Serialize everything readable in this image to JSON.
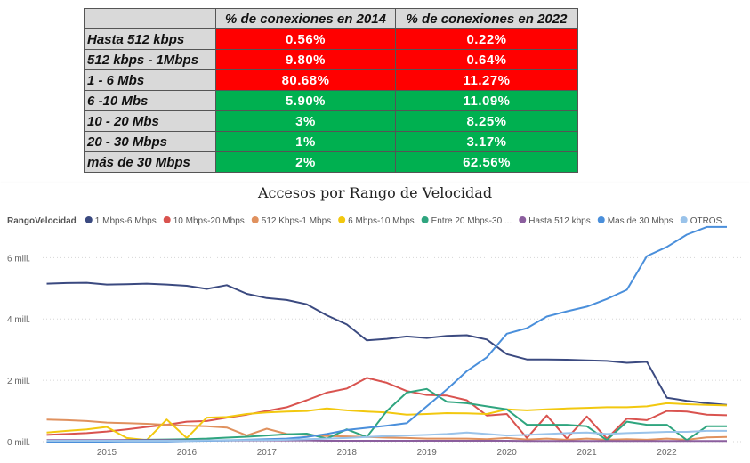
{
  "table": {
    "headers": [
      "",
      "% de conexiones en 2014",
      "% de conexiones en 2022"
    ],
    "rows": [
      {
        "label": "Hasta 512 kbps",
        "v2014": "0.56%",
        "v2022": "0.22%",
        "color": "#ff0000"
      },
      {
        "label": "512 kbps - 1Mbps",
        "v2014": "9.80%",
        "v2022": "0.64%",
        "color": "#ff0000"
      },
      {
        "label": "1 - 6 Mbs",
        "v2014": "80.68%",
        "v2022": "11.27%",
        "color": "#ff0000"
      },
      {
        "label": "6 -10 Mbs",
        "v2014": "5.90%",
        "v2022": "11.09%",
        "color": "#00b050"
      },
      {
        "label": "10 - 20 Mbs",
        "v2014": "3%",
        "v2022": "8.25%",
        "color": "#00b050"
      },
      {
        "label": "20 - 30 Mbps",
        "v2014": "1%",
        "v2022": "3.17%",
        "color": "#00b050"
      },
      {
        "label": "más de 30 Mbps",
        "v2014": "2%",
        "v2022": "62.56%",
        "color": "#00b050"
      }
    ]
  },
  "chart_data": {
    "type": "line",
    "title": "Accesos por Rango de Velocidad",
    "legend_title": "RangoVelocidad",
    "legend_position": "top-left",
    "xlabel": "",
    "ylabel": "",
    "x_ticks": [
      "2015",
      "2016",
      "2017",
      "2018",
      "2019",
      "2020",
      "2021",
      "2022"
    ],
    "y_ticks": [
      {
        "value": 0,
        "label": "0 mill."
      },
      {
        "value": 2,
        "label": "2 mill."
      },
      {
        "value": 4,
        "label": "4 mill."
      },
      {
        "value": 6,
        "label": "6 mill."
      }
    ],
    "xlim": [
      2014.2,
      2022.95
    ],
    "ylim": [
      0,
      7.2
    ],
    "grid": "horizontal dotted",
    "x": [
      2014.25,
      2014.5,
      2014.75,
      2015,
      2015.25,
      2015.5,
      2015.75,
      2016,
      2016.25,
      2016.5,
      2016.75,
      2017,
      2017.25,
      2017.5,
      2017.75,
      2018,
      2018.25,
      2018.5,
      2018.75,
      2019,
      2019.25,
      2019.5,
      2019.75,
      2020,
      2020.25,
      2020.5,
      2020.75,
      2021,
      2021.25,
      2021.5,
      2021.75,
      2022,
      2022.25,
      2022.5,
      2022.75
    ],
    "series": [
      {
        "name": "1 Mbps-6 Mbps",
        "color": "#3b4a80",
        "values": [
          5.15,
          5.17,
          5.18,
          5.12,
          5.13,
          5.15,
          5.12,
          5.08,
          4.98,
          5.1,
          4.82,
          4.68,
          4.62,
          4.48,
          4.12,
          3.82,
          3.3,
          3.35,
          3.43,
          3.38,
          3.45,
          3.47,
          3.33,
          2.85,
          2.68,
          2.68,
          2.67,
          2.65,
          2.63,
          2.57,
          2.6,
          1.43,
          1.33,
          1.25,
          1.2
        ]
      },
      {
        "name": "10 Mbps-20 Mbps",
        "color": "#d9534f",
        "values": [
          0.22,
          0.25,
          0.28,
          0.33,
          0.4,
          0.48,
          0.55,
          0.65,
          0.67,
          0.78,
          0.88,
          1.0,
          1.12,
          1.35,
          1.6,
          1.73,
          2.08,
          1.92,
          1.65,
          1.52,
          1.5,
          1.35,
          0.85,
          0.9,
          0.12,
          0.85,
          0.1,
          0.82,
          0.1,
          0.75,
          0.7,
          1.0,
          0.98,
          0.88,
          0.86
        ]
      },
      {
        "name": "512 Kbps-1 Mbps",
        "color": "#e0915e",
        "values": [
          0.72,
          0.7,
          0.67,
          0.62,
          0.6,
          0.58,
          0.55,
          0.52,
          0.5,
          0.46,
          0.2,
          0.42,
          0.25,
          0.22,
          0.18,
          0.17,
          0.15,
          0.13,
          0.12,
          0.1,
          0.1,
          0.1,
          0.08,
          0.12,
          0.07,
          0.1,
          0.06,
          0.1,
          0.06,
          0.08,
          0.06,
          0.1,
          0.06,
          0.14,
          0.15
        ]
      },
      {
        "name": "6 Mbps-10 Mbps",
        "color": "#f2c80f",
        "values": [
          0.3,
          0.35,
          0.4,
          0.48,
          0.12,
          0.05,
          0.72,
          0.12,
          0.78,
          0.8,
          0.9,
          0.95,
          0.98,
          1.0,
          1.08,
          1.02,
          0.98,
          0.95,
          0.88,
          0.9,
          0.93,
          0.92,
          0.9,
          1.05,
          1.02,
          1.05,
          1.08,
          1.1,
          1.12,
          1.12,
          1.15,
          1.25,
          1.22,
          1.2,
          1.18
        ]
      },
      {
        "name": "Entre 20 Mbps-30 ...",
        "color": "#2fa57f",
        "values": [
          0.02,
          0.02,
          0.03,
          0.04,
          0.05,
          0.06,
          0.07,
          0.08,
          0.1,
          0.13,
          0.16,
          0.2,
          0.24,
          0.26,
          0.1,
          0.4,
          0.15,
          1.0,
          1.6,
          1.72,
          1.3,
          1.25,
          1.15,
          1.05,
          0.55,
          0.55,
          0.55,
          0.5,
          0.05,
          0.65,
          0.55,
          0.55,
          0.05,
          0.5,
          0.5
        ]
      },
      {
        "name": "Hasta 512 kbps",
        "color": "#8b5e9e",
        "values": [
          0.05,
          0.05,
          0.05,
          0.05,
          0.05,
          0.05,
          0.05,
          0.04,
          0.04,
          0.04,
          0.04,
          0.04,
          0.04,
          0.04,
          0.03,
          0.03,
          0.03,
          0.03,
          0.03,
          0.03,
          0.03,
          0.03,
          0.03,
          0.03,
          0.02,
          0.02,
          0.02,
          0.02,
          0.02,
          0.02,
          0.02,
          0.02,
          0.02,
          0.02,
          0.02
        ]
      },
      {
        "name": "Mas de 30 Mbps",
        "color": "#4a8fdb",
        "values": [
          0.0,
          0.0,
          0.0,
          0.0,
          0.01,
          0.01,
          0.01,
          0.02,
          0.03,
          0.04,
          0.06,
          0.08,
          0.1,
          0.15,
          0.25,
          0.38,
          0.45,
          0.52,
          0.6,
          1.15,
          1.7,
          2.3,
          2.75,
          3.52,
          3.7,
          4.08,
          4.25,
          4.4,
          4.65,
          4.95,
          6.05,
          6.35,
          6.75,
          7.0,
          7.0
        ]
      },
      {
        "name": "OTROS",
        "color": "#9ac3ea",
        "values": [
          0.03,
          0.03,
          0.03,
          0.03,
          0.03,
          0.03,
          0.03,
          0.03,
          0.04,
          0.05,
          0.05,
          0.05,
          0.06,
          0.08,
          0.1,
          0.12,
          0.15,
          0.18,
          0.2,
          0.22,
          0.25,
          0.3,
          0.25,
          0.2,
          0.22,
          0.25,
          0.28,
          0.3,
          0.25,
          0.28,
          0.3,
          0.32,
          0.32,
          0.35,
          0.35
        ]
      }
    ]
  }
}
